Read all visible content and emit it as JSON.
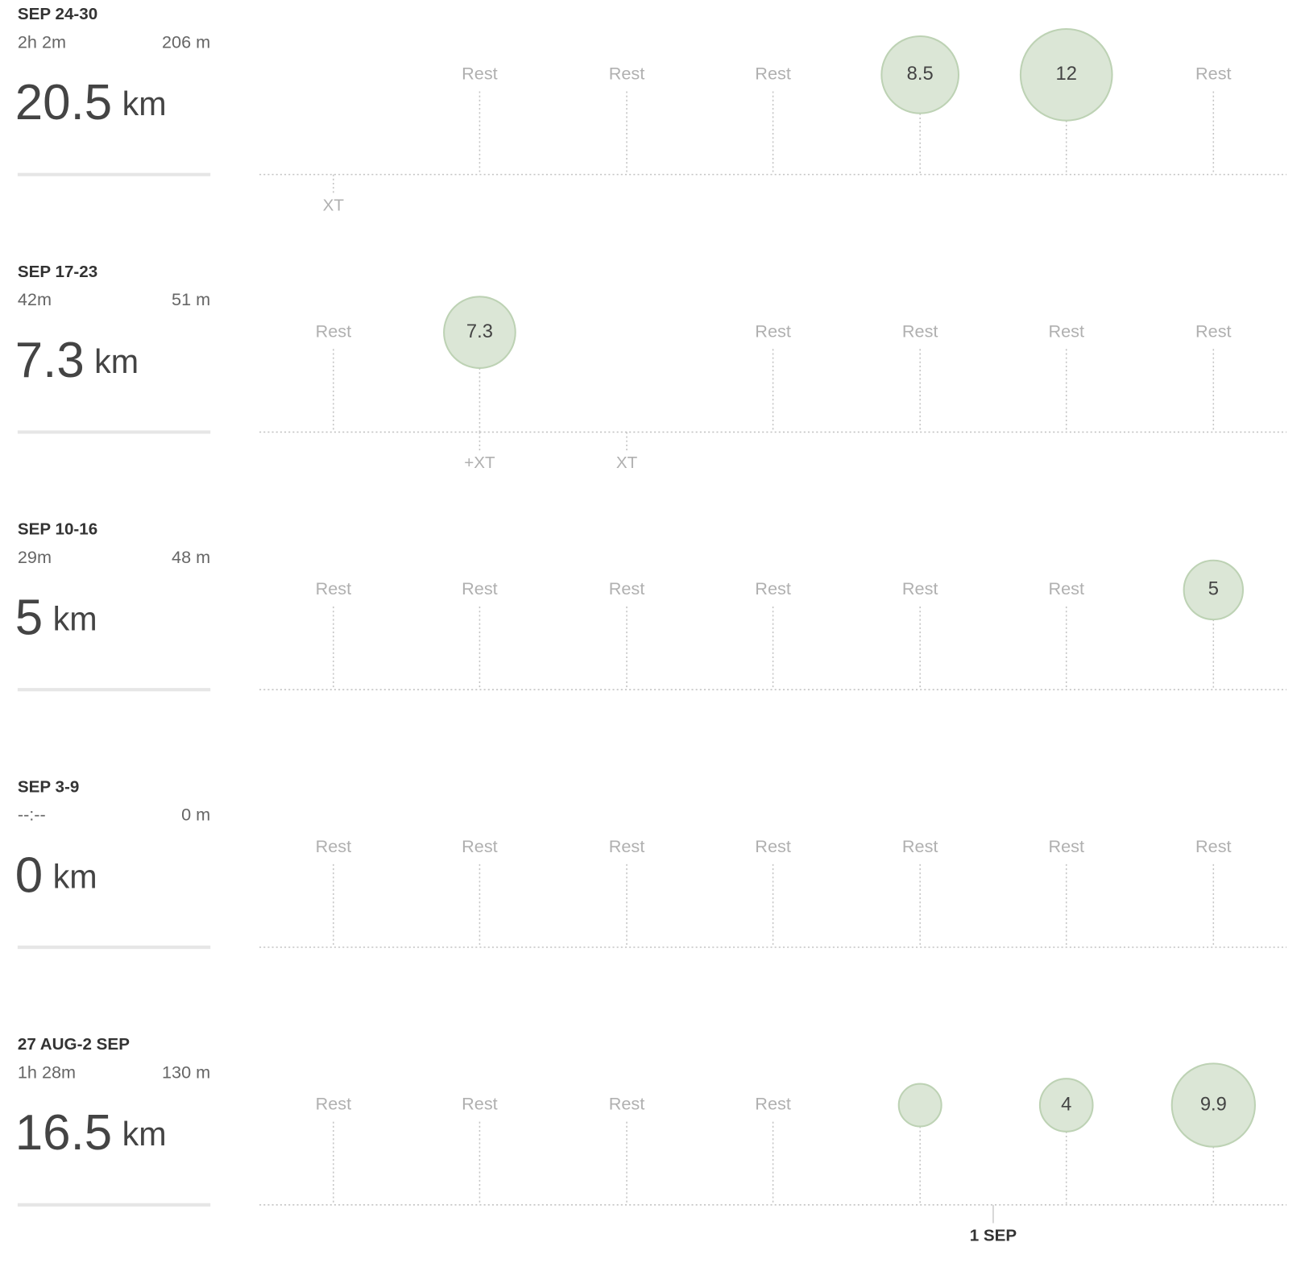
{
  "weeks": [
    {
      "title": "SEP 24-30",
      "duration": "2h 2m",
      "elevation": "206 m",
      "distance": "20.5",
      "unit": "km",
      "days": [
        {
          "note": "XT"
        },
        {
          "status": "Rest"
        },
        {
          "status": "Rest"
        },
        {
          "status": "Rest"
        },
        {
          "distance": 8.5
        },
        {
          "distance": 12
        },
        {
          "status": "Rest"
        }
      ]
    },
    {
      "title": "SEP 17-23",
      "duration": "42m",
      "elevation": "51 m",
      "distance": "7.3",
      "unit": "km",
      "days": [
        {
          "status": "Rest"
        },
        {
          "distance": 7.3,
          "note": "+XT"
        },
        {
          "note": "XT"
        },
        {
          "status": "Rest"
        },
        {
          "status": "Rest"
        },
        {
          "status": "Rest"
        },
        {
          "status": "Rest"
        }
      ]
    },
    {
      "title": "SEP 10-16",
      "duration": "29m",
      "elevation": "48 m",
      "distance": "5",
      "unit": "km",
      "days": [
        {
          "status": "Rest"
        },
        {
          "status": "Rest"
        },
        {
          "status": "Rest"
        },
        {
          "status": "Rest"
        },
        {
          "status": "Rest"
        },
        {
          "status": "Rest"
        },
        {
          "distance": 5
        }
      ]
    },
    {
      "title": "SEP 3-9",
      "duration": "--:--",
      "elevation": "0 m",
      "distance": "0",
      "unit": "km",
      "days": [
        {
          "status": "Rest"
        },
        {
          "status": "Rest"
        },
        {
          "status": "Rest"
        },
        {
          "status": "Rest"
        },
        {
          "status": "Rest"
        },
        {
          "status": "Rest"
        },
        {
          "status": "Rest"
        }
      ]
    },
    {
      "title": "27 AUG-2 SEP",
      "duration": "1h 28m",
      "elevation": "130 m",
      "distance": "16.5",
      "unit": "km",
      "month_marker": "1 SEP",
      "days": [
        {
          "status": "Rest"
        },
        {
          "status": "Rest"
        },
        {
          "status": "Rest"
        },
        {
          "status": "Rest"
        },
        {
          "distance": 2.6,
          "labeled": false
        },
        {
          "distance": 4
        },
        {
          "distance": 9.9
        }
      ]
    }
  ]
}
